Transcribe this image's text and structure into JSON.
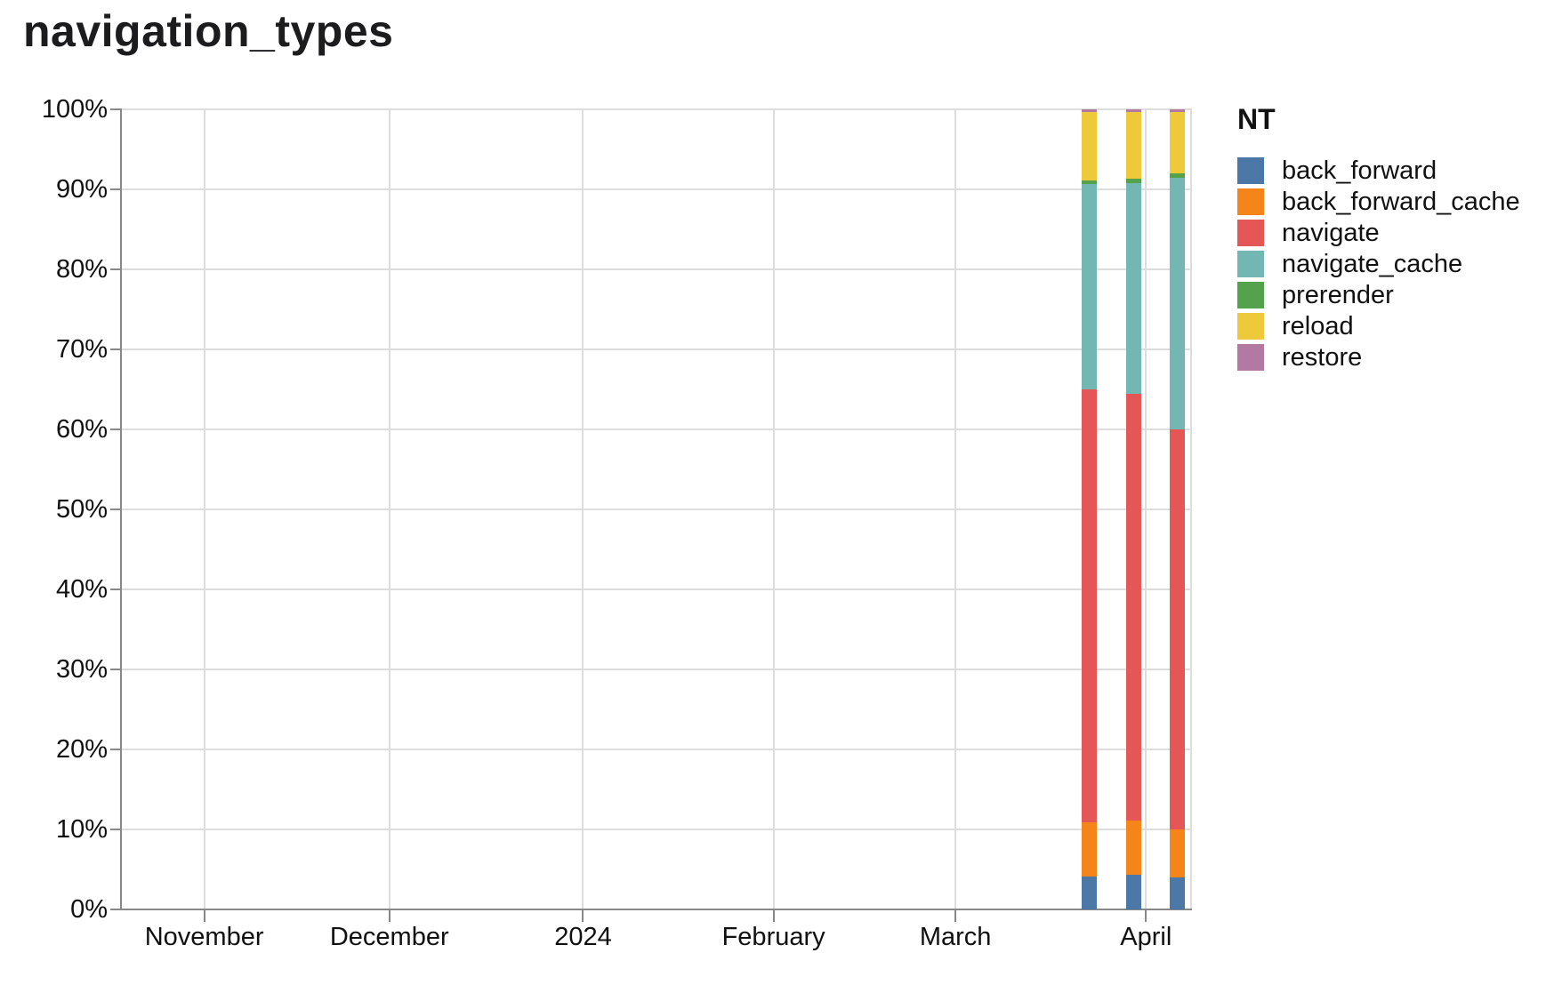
{
  "title": "navigation_types",
  "legend": {
    "title": "NT",
    "items": [
      {
        "label": "back_forward",
        "color": "#4c78a8",
        "icon": "blue-swatch-icon"
      },
      {
        "label": "back_forward_cache",
        "color": "#f58518",
        "icon": "orange-swatch-icon"
      },
      {
        "label": "navigate",
        "color": "#e45756",
        "icon": "red-swatch-icon"
      },
      {
        "label": "navigate_cache",
        "color": "#72b7b2",
        "icon": "teal-swatch-icon"
      },
      {
        "label": "prerender",
        "color": "#54a24b",
        "icon": "green-swatch-icon"
      },
      {
        "label": "reload",
        "color": "#eeca3b",
        "icon": "yellow-swatch-icon"
      },
      {
        "label": "restore",
        "color": "#b279a2",
        "icon": "purple-swatch-icon"
      }
    ]
  },
  "chart_data": {
    "type": "bar",
    "subtype": "stacked-normalized-percent",
    "title": "navigation_types",
    "xlabel": "",
    "ylabel": "",
    "ylim": [
      0,
      100
    ],
    "grid": true,
    "legend_title": "NT",
    "legend_position": "right",
    "y_axis": {
      "ticks": [
        {
          "label": "0%",
          "value": 0
        },
        {
          "label": "10%",
          "value": 10
        },
        {
          "label": "20%",
          "value": 20
        },
        {
          "label": "30%",
          "value": 30
        },
        {
          "label": "40%",
          "value": 40
        },
        {
          "label": "50%",
          "value": 50
        },
        {
          "label": "60%",
          "value": 60
        },
        {
          "label": "70%",
          "value": 70
        },
        {
          "label": "80%",
          "value": 80
        },
        {
          "label": "90%",
          "value": 90
        },
        {
          "label": "100%",
          "value": 100
        }
      ]
    },
    "x_axis": {
      "ticks": [
        {
          "label": "November",
          "pos_pct": 7.7
        },
        {
          "label": "December",
          "pos_pct": 25.0
        },
        {
          "label": "2024",
          "pos_pct": 43.1
        },
        {
          "label": "February",
          "pos_pct": 60.9
        },
        {
          "label": "March",
          "pos_pct": 77.9
        },
        {
          "label": "April",
          "pos_pct": 95.7
        }
      ]
    },
    "series_order": [
      "back_forward",
      "back_forward_cache",
      "navigate",
      "navigate_cache",
      "prerender",
      "reload",
      "restore"
    ],
    "bars": [
      {
        "x_pct": 89.7,
        "width_pct": 1.41,
        "values": {
          "back_forward": 4.1,
          "back_forward_cache": 6.8,
          "navigate": 54.1,
          "navigate_cache": 25.7,
          "prerender": 0.45,
          "reload": 8.5,
          "restore": 0.35
        }
      },
      {
        "x_pct": 93.85,
        "width_pct": 1.41,
        "values": {
          "back_forward": 4.3,
          "back_forward_cache": 6.8,
          "navigate": 53.3,
          "navigate_cache": 26.4,
          "prerender": 0.5,
          "reload": 8.35,
          "restore": 0.35
        }
      },
      {
        "x_pct": 97.9,
        "width_pct": 1.41,
        "values": {
          "back_forward": 4.0,
          "back_forward_cache": 6.0,
          "navigate": 50.0,
          "navigate_cache": 31.4,
          "prerender": 0.6,
          "reload": 7.65,
          "restore": 0.35
        }
      }
    ]
  },
  "style": {
    "grid_color": "#dddddd",
    "axis_color": "#888888",
    "text_color": "#111111",
    "background": "#ffffff"
  }
}
